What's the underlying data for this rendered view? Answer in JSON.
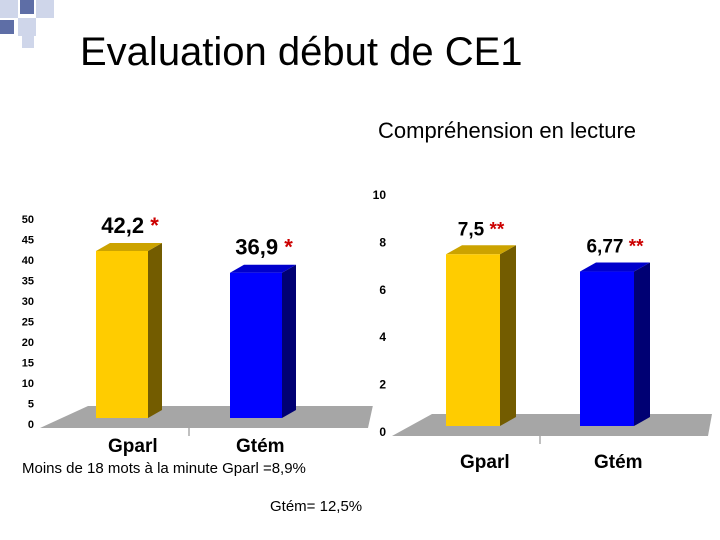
{
  "slide": {
    "title": "Evaluation début de CE1",
    "subtitle": "Compréhension en lecture",
    "note_line1": "Moins de 18 mots à la minute Gparl =8,9%",
    "note_line2": "Gtém= 12,5%"
  },
  "colors": {
    "corner_light": "#cfd6ea",
    "corner_dark": "#5e6ea6",
    "bar_yellow": "#ffcc00",
    "bar_blue": "#0000ff",
    "floor": "#a6a6a6",
    "label_red": "#cc0000"
  },
  "chart_data": [
    {
      "type": "bar",
      "categories": [
        "Gparl",
        "Gtém"
      ],
      "values": [
        42.2,
        36.9
      ],
      "data_labels": [
        "42,2",
        "36,9"
      ],
      "marks": [
        "*",
        "*"
      ],
      "ylim": [
        0,
        50
      ],
      "yticks": [
        "0",
        "5",
        "10",
        "15",
        "20",
        "25",
        "30",
        "35",
        "40",
        "45",
        "50"
      ],
      "bar_colors": [
        "#ffcc00",
        "#0000ff"
      ],
      "grid": false
    },
    {
      "type": "bar",
      "categories": [
        "Gparl",
        "Gtém"
      ],
      "values": [
        7.5,
        6.77
      ],
      "data_labels": [
        "7,5",
        "6,77"
      ],
      "marks": [
        "**",
        "**"
      ],
      "ylim": [
        0,
        10
      ],
      "yticks": [
        "0",
        "2",
        "4",
        "6",
        "8",
        "10"
      ],
      "bar_colors": [
        "#ffcc00",
        "#0000ff"
      ],
      "grid": false
    }
  ]
}
